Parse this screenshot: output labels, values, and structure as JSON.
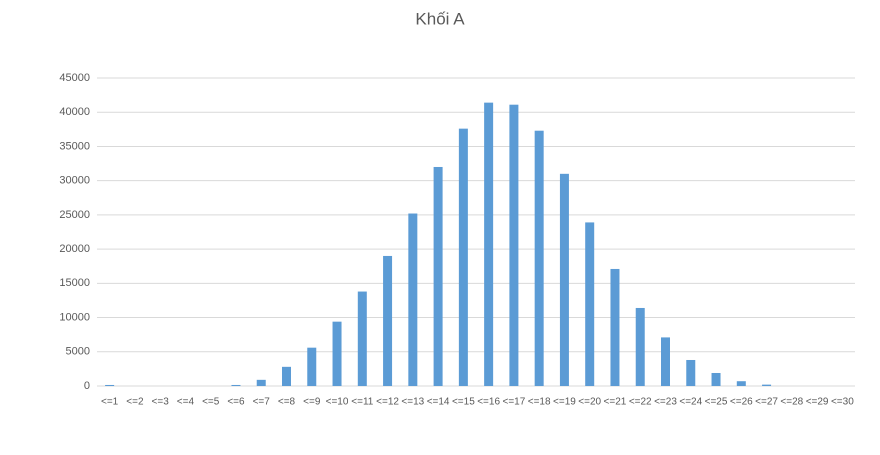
{
  "chart_data": {
    "type": "bar",
    "title": "Khối A",
    "categories": [
      "<=1",
      "<=2",
      "<=3",
      "<=4",
      "<=5",
      "<=6",
      "<=7",
      "<=8",
      "<=9",
      "<=10",
      "<=11",
      "<=12",
      "<=13",
      "<=14",
      "<=15",
      "<=16",
      "<=17",
      "<=18",
      "<=19",
      "<=20",
      "<=21",
      "<=22",
      "<=23",
      "<=24",
      "<=25",
      "<=26",
      "<=27",
      "<=28",
      "<=29",
      "<=30"
    ],
    "values": [
      150,
      0,
      0,
      0,
      0,
      150,
      900,
      2800,
      5600,
      9400,
      13800,
      19000,
      25200,
      32000,
      37600,
      41400,
      41100,
      37300,
      31000,
      23900,
      17100,
      11400,
      7100,
      3800,
      1900,
      700,
      200,
      0,
      0,
      0
    ],
    "color": "#5b9bd5",
    "ylim": [
      0,
      45000
    ],
    "yticks": [
      0,
      5000,
      10000,
      15000,
      20000,
      25000,
      30000,
      35000,
      40000,
      45000
    ],
    "grid": true
  }
}
